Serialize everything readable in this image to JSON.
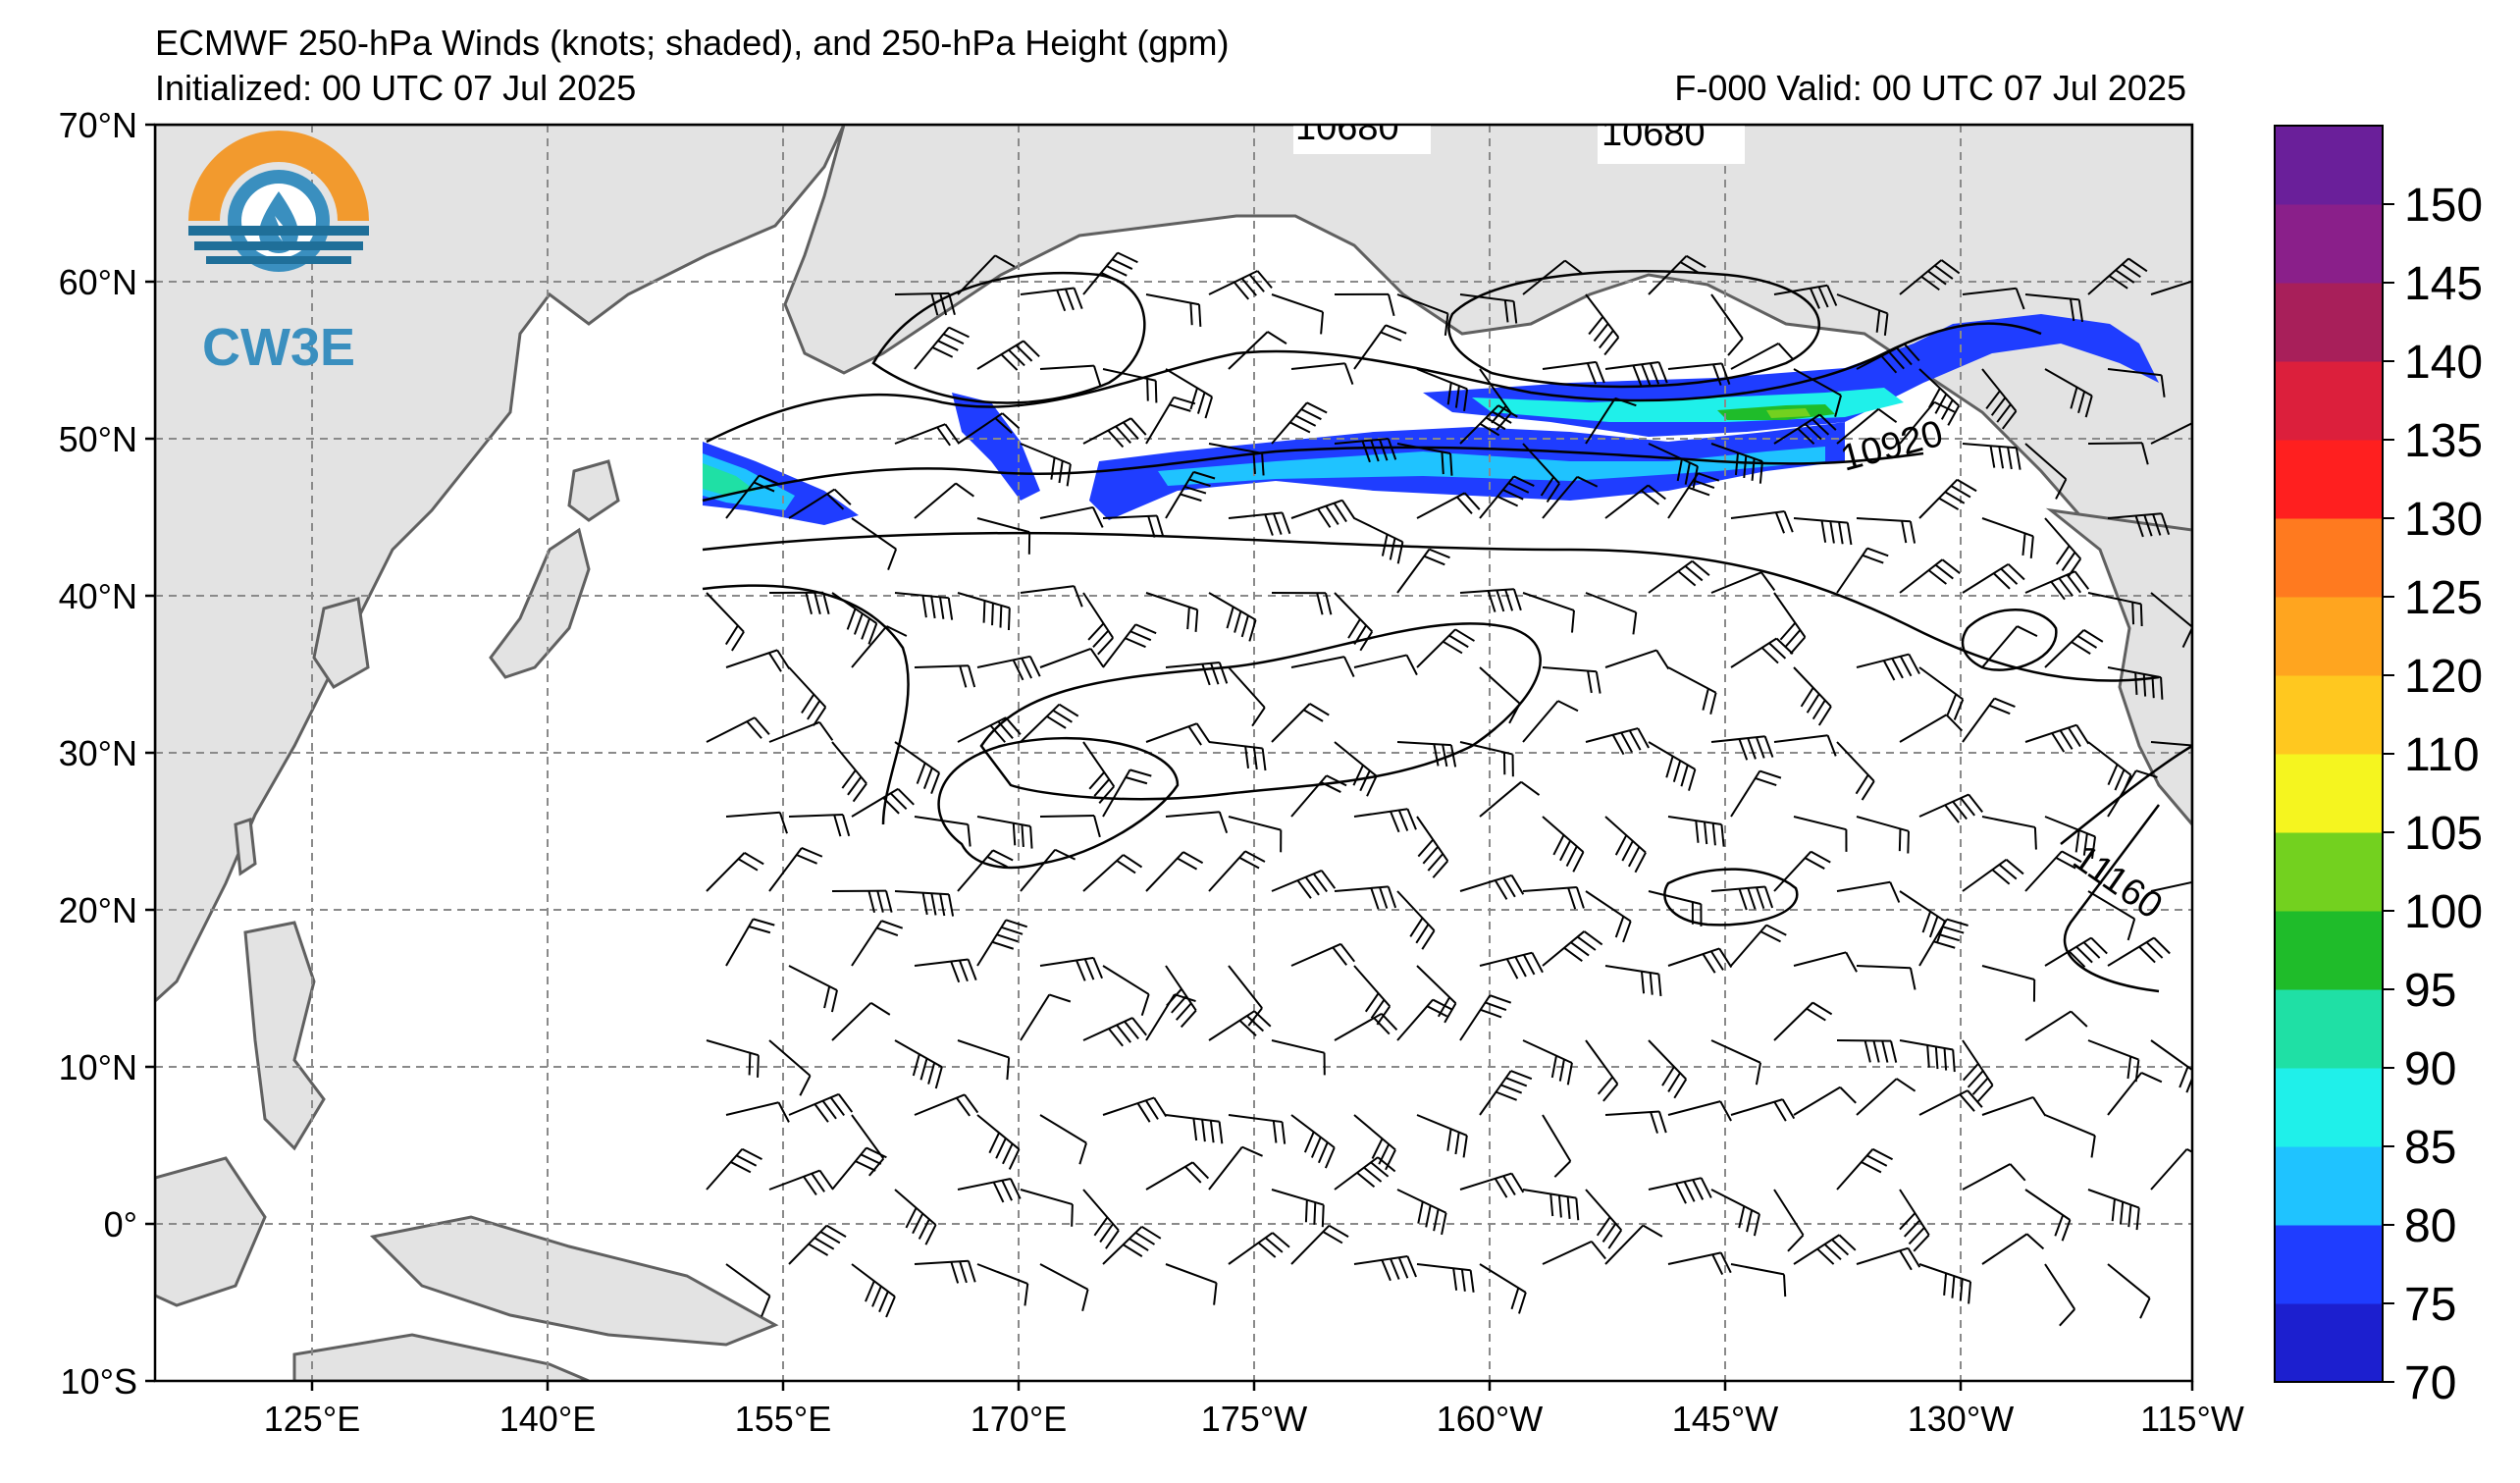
{
  "header": {
    "title": "ECMWF 250-hPa Winds (knots; shaded), and 250-hPa Height (gpm)",
    "initialized": "Initialized: 00 UTC 07 Jul 2025",
    "valid": "F-000  Valid: 00 UTC 07 Jul 2025"
  },
  "logo": {
    "text": "CW3E",
    "colors": {
      "orange": "#f29a2e",
      "blue": "#3a8fbf",
      "dark_blue": "#1f6f99"
    }
  },
  "map": {
    "lat_labels": [
      "70°N",
      "60°N",
      "50°N",
      "40°N",
      "30°N",
      "20°N",
      "10°N",
      "0°",
      "10°S"
    ],
    "lon_labels": [
      "125°E",
      "140°E",
      "155°E",
      "170°E",
      "175°W",
      "160°W",
      "145°W",
      "130°W",
      "115°W"
    ],
    "land_color": "#e3e3e3",
    "coast_color": "#606060",
    "grid_style": "dashed gray",
    "contour_labels": [
      "10680",
      "10680",
      "10920",
      "11160"
    ]
  },
  "colorbar": {
    "labels": [
      "70",
      "75",
      "80",
      "85",
      "90",
      "95",
      "100",
      "105",
      "110",
      "120",
      "125",
      "130",
      "135",
      "140",
      "145",
      "150"
    ],
    "colors": [
      "#1c1fcf",
      "#1f3dff",
      "#1fc3ff",
      "#1ff0ea",
      "#1fe0a5",
      "#1fbc2a",
      "#73d11f",
      "#f5f51f",
      "#ffc81f",
      "#ffa51f",
      "#ff7a1f",
      "#ff1f1f",
      "#dc1f3c",
      "#a81f5a",
      "#8a1f8a",
      "#6a1f9a"
    ]
  }
}
